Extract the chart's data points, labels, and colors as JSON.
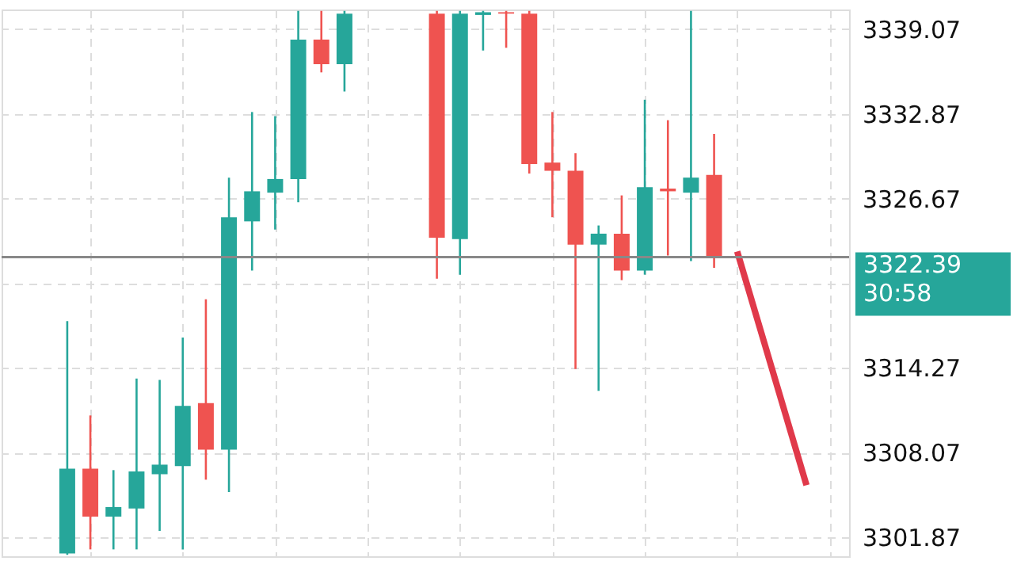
{
  "chart_data": {
    "type": "candlestick",
    "categories": [
      null,
      null,
      null,
      null,
      null,
      null,
      null,
      null,
      null,
      null,
      null,
      null,
      null,
      null,
      null,
      null,
      null,
      null,
      null,
      null,
      null,
      null,
      null,
      null,
      null,
      null,
      null,
      null,
      null,
      null,
      null,
      null,
      null,
      null,
      null,
      null
    ],
    "ohlc": [
      null,
      null,
      [
        3300.7,
        3317.7,
        3300.6,
        3306.9
      ],
      [
        3306.9,
        3310.8,
        3301.0,
        3303.4
      ],
      [
        3303.4,
        3306.8,
        3301.0,
        3304.1
      ],
      [
        3304.0,
        3313.5,
        3301.0,
        3306.7
      ],
      [
        3306.5,
        3313.4,
        3302.35,
        3307.2
      ],
      [
        3307.1,
        3316.5,
        3301.0,
        3311.5
      ],
      [
        3311.7,
        3319.3,
        3306.1,
        3308.3
      ],
      [
        3308.3,
        3328.2,
        3305.2,
        3325.3
      ],
      [
        3325.0,
        3333.0,
        3321.4,
        3327.2
      ],
      [
        3327.1,
        3332.7,
        3324.4,
        3328.1
      ],
      [
        3328.1,
        3340.4,
        3326.4,
        3338.3
      ],
      [
        3338.3,
        3340.4,
        3335.9,
        3336.5
      ],
      [
        3336.5,
        3340.4,
        3334.5,
        3340.2
      ],
      null,
      null,
      null,
      [
        3340.2,
        3340.4,
        3320.8,
        3323.8
      ],
      [
        3323.7,
        3340.4,
        3321.1,
        3340.2
      ],
      [
        3340.1,
        3340.4,
        3337.5,
        3340.3
      ],
      [
        3340.3,
        3340.4,
        3337.7,
        3340.2
      ],
      [
        3340.2,
        3340.4,
        3328.5,
        3329.2
      ],
      [
        3329.3,
        3333.0,
        3325.3,
        3328.7
      ],
      [
        3328.7,
        3330.0,
        3314.2,
        3323.3
      ],
      [
        3323.3,
        3324.7,
        3312.6,
        3324.1
      ],
      [
        3324.1,
        3326.9,
        3320.7,
        3321.4
      ],
      [
        3321.4,
        3333.9,
        3321.1,
        3327.5
      ],
      [
        3327.4,
        3332.4,
        3322.5,
        3327.2
      ],
      [
        3327.1,
        3340.4,
        3322.1,
        3328.2
      ],
      [
        3328.4,
        3331.4,
        3321.6,
        3322.39
      ],
      null,
      null,
      null,
      null,
      null
    ],
    "colors": [
      null,
      null,
      "#26a69a",
      "#ef5350",
      "#26a69a",
      "#26a69a",
      "#26a69a",
      "#26a69a",
      "#ef5350",
      "#26a69a",
      "#26a69a",
      "#26a69a",
      "#26a69a",
      "#ef5350",
      "#26a69a",
      null,
      null,
      null,
      "#ef5350",
      "#26a69a",
      "#26a69a",
      "#ef5350",
      "#ef5350",
      "#ef5350",
      "#ef5350",
      "#26a69a",
      "#ef5350",
      "#26a69a",
      "#ef5350",
      "#26a69a",
      "#ef5350",
      null,
      null,
      null,
      null,
      null
    ],
    "series": [
      {
        "type": "line",
        "color": "#e0394a",
        "values": [
          null,
          null,
          null,
          null,
          null,
          null,
          null,
          null,
          null,
          null,
          null,
          null,
          null,
          null,
          null,
          null,
          null,
          null,
          null,
          null,
          null,
          null,
          null,
          null,
          null,
          null,
          null,
          null,
          null,
          null,
          null,
          3322.8,
          null,
          null,
          3305.7,
          null
        ]
      }
    ],
    "ylim": [
      3300.5,
      3340.5
    ],
    "yticks": [
      3301.87,
      3308.07,
      3314.27,
      {
        "value": 3320.47,
        "label": null
      },
      3326.67,
      3332.87,
      3339.07
    ],
    "ref_lines": [
      {
        "axis": "y",
        "value": 3322.39,
        "label": "3322.39\n30:58",
        "color": "#888888"
      }
    ],
    "grid": true,
    "tick_labels": "y"
  }
}
